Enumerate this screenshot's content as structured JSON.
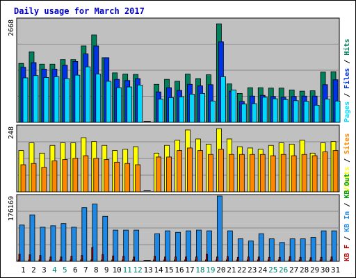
{
  "chart_data": {
    "type": "bar",
    "title": "Daily usage for March 2017",
    "categories": [
      "1",
      "2",
      "3",
      "4",
      "5",
      "6",
      "7",
      "8",
      "9",
      "10",
      "11",
      "12",
      "13",
      "14",
      "15",
      "16",
      "17",
      "18",
      "19",
      "20",
      "21",
      "22",
      "23",
      "24",
      "25",
      "26",
      "27",
      "28",
      "29",
      "30",
      "31"
    ],
    "weekend_days": [
      "4",
      "5",
      "11",
      "12",
      "18",
      "19",
      "25",
      "26"
    ],
    "panels": [
      {
        "id": "hits",
        "max_label": "2668",
        "ylim": [
          0,
          2668
        ],
        "legend": [
          "Pages",
          "Files",
          "Hits"
        ],
        "series": [
          {
            "name": "Hits",
            "color": "#00805c",
            "values": [
              1550,
              1850,
              1530,
              1530,
              1650,
              1650,
              2010,
              2300,
              1700,
              1300,
              1270,
              1260,
              0,
              1000,
              1130,
              1080,
              1270,
              1150,
              1250,
              2590,
              1010,
              760,
              910,
              910,
              900,
              900,
              850,
              820,
              830,
              1320,
              1330
            ]
          },
          {
            "name": "Files",
            "color": "#0032e8",
            "values": [
              1450,
              1570,
              1400,
              1400,
              1500,
              1600,
              1800,
              2010,
              1700,
              1130,
              1100,
              1150,
              0,
              800,
              910,
              840,
              1000,
              960,
              990,
              2120,
              820,
              550,
              690,
              710,
              680,
              660,
              680,
              690,
              690,
              990,
              1120
            ]
          },
          {
            "name": "Pages",
            "color": "#00d8ff",
            "values": [
              1170,
              1230,
              1180,
              1200,
              1150,
              1240,
              1460,
              1270,
              1080,
              910,
              930,
              980,
              0,
              610,
              650,
              670,
              740,
              760,
              560,
              1200,
              850,
              480,
              490,
              660,
              620,
              600,
              570,
              550,
              450,
              610,
              560
            ]
          }
        ]
      },
      {
        "id": "visits",
        "max_label": "248",
        "ylim": [
          0,
          248
        ],
        "legend": [
          "Visits",
          "Sites"
        ],
        "series": [
          {
            "name": "Visits",
            "color": "#ffff00",
            "values": [
              160,
              190,
              150,
              180,
              190,
              190,
              210,
              195,
              180,
              160,
              165,
              175,
              0,
              150,
              180,
              200,
              240,
              205,
              185,
              245,
              205,
              175,
              170,
              165,
              180,
              190,
              185,
              200,
              150,
              190,
              195
            ]
          },
          {
            "name": "Sites",
            "color": "#ff8800",
            "values": [
              105,
              110,
              95,
              120,
              125,
              130,
              140,
              130,
              125,
              115,
              110,
              105,
              0,
              135,
              135,
              160,
              170,
              160,
              145,
              165,
              145,
              145,
              145,
              145,
              140,
              145,
              140,
              145,
              140,
              155,
              160
            ]
          }
        ]
      },
      {
        "id": "kbytes",
        "max_label": "176169",
        "ylim": [
          0,
          176169
        ],
        "legend": [
          "KB F",
          "KB In",
          "KB Out"
        ],
        "series": [
          {
            "name": "KB Out",
            "color": "#00a000",
            "values": [
              4000,
              4000,
              4000,
              4000,
              4000,
              4000,
              4000,
              4000,
              4000,
              4000,
              4000,
              4000,
              0,
              4000,
              4000,
              4000,
              4000,
              4000,
              4000,
              4000,
              4000,
              4000,
              4000,
              4000,
              4000,
              4000,
              4000,
              4000,
              4000,
              4000,
              4000
            ]
          },
          {
            "name": "KB In",
            "color": "#1e88e5",
            "values": [
              100000,
              128000,
              94000,
              98000,
              104000,
              94000,
              148000,
              158000,
              124000,
              86000,
              86000,
              86000,
              0,
              76000,
              84000,
              80000,
              84000,
              86000,
              84000,
              180000,
              84000,
              62000,
              56000,
              76000,
              62000,
              52000,
              62000,
              62000,
              66000,
              84000,
              84000
            ]
          },
          {
            "name": "KB F",
            "color": "#b00000",
            "values": [
              20000,
              18000,
              16000,
              12000,
              12000,
              14000,
              16000,
              38000,
              19000,
              15000,
              14000,
              12000,
              0,
              14000,
              12000,
              12000,
              12000,
              12000,
              20000,
              12000,
              13000,
              11000,
              12000,
              12000,
              11000,
              11000,
              13000,
              11000,
              10000,
              11000,
              12000
            ]
          }
        ]
      }
    ]
  }
}
